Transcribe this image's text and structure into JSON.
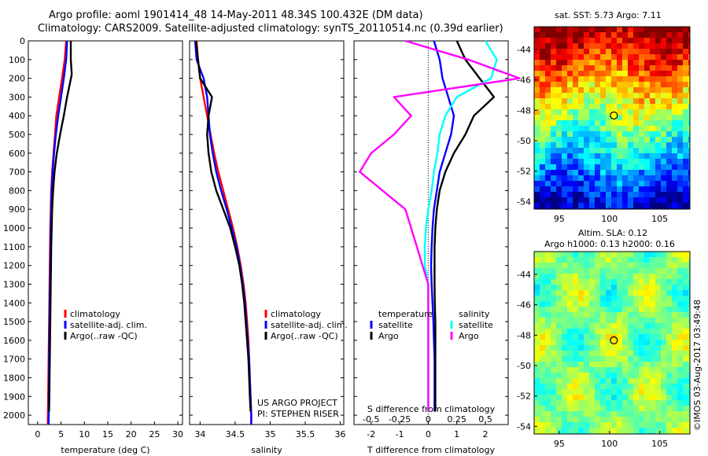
{
  "header": {
    "line1": "Argo profile: aoml 1901414_48 14-May-2011 48.34S 100.432E (DM data)",
    "line2": "Climatology: CARS2009. Satellite-adjusted climatology: synTS_20110514.nc (0.39d earlier)"
  },
  "side": {
    "sst_title": "sat. SST: 5.73 Argo: 7.11",
    "sla_title1": "Altim. SLA: 0.12",
    "sla_title2": "Argo h1000: 0.13 h2000: 0.16",
    "watermark": "©IMOS 03-Aug-2017 03:49:48"
  },
  "chart_data": [
    {
      "type": "line",
      "id": "temperature",
      "xlabel": "temperature (deg C)",
      "xlim": [
        -2,
        31
      ],
      "xticks": [
        0,
        5,
        10,
        15,
        20,
        25,
        30
      ],
      "ylim": [
        0,
        2050
      ],
      "yticks": [
        0,
        100,
        200,
        300,
        400,
        500,
        600,
        700,
        800,
        900,
        1000,
        1100,
        1200,
        1300,
        1400,
        1500,
        1600,
        1700,
        1800,
        1900,
        2000
      ],
      "legend": [
        "climatology",
        "satellite-adj. clim.",
        "Argo(..raw -QC)"
      ],
      "series": [
        {
          "name": "climatology",
          "color": "#ff0000",
          "x": [
            6.1,
            5.8,
            5.2,
            4.6,
            4.0,
            3.7,
            3.4,
            3.1,
            2.9,
            2.8,
            2.7,
            2.65,
            2.6,
            2.55,
            2.5,
            2.45,
            2.4,
            2.35,
            2.3,
            2.25,
            2.2,
            2.15
          ],
          "y": [
            0,
            100,
            200,
            300,
            400,
            500,
            600,
            700,
            800,
            900,
            1000,
            1100,
            1200,
            1300,
            1400,
            1500,
            1600,
            1700,
            1800,
            1900,
            2000,
            2050
          ]
        },
        {
          "name": "satellite-adj. clim.",
          "color": "#0000ff",
          "x": [
            6.3,
            6.1,
            5.6,
            5.0,
            4.4,
            3.9,
            3.5,
            3.2,
            3.0,
            2.9,
            2.8,
            2.75,
            2.7,
            2.65,
            2.6,
            2.55,
            2.5,
            2.45,
            2.42,
            2.4,
            2.38,
            2.36
          ],
          "y": [
            0,
            100,
            200,
            300,
            400,
            500,
            600,
            700,
            800,
            900,
            1000,
            1100,
            1200,
            1300,
            1400,
            1500,
            1600,
            1700,
            1800,
            1900,
            2000,
            2050
          ]
        },
        {
          "name": "Argo(..raw -QC)",
          "color": "#000000",
          "x": [
            7.1,
            7.1,
            7.3,
            6.3,
            5.6,
            4.8,
            4.1,
            3.6,
            3.3,
            3.1,
            3.0,
            2.9,
            2.85,
            2.8,
            2.75,
            2.7,
            2.65,
            2.6,
            2.55,
            2.5,
            2.45
          ],
          "y": [
            0,
            100,
            180,
            300,
            400,
            500,
            600,
            700,
            800,
            900,
            1000,
            1100,
            1200,
            1300,
            1400,
            1500,
            1600,
            1700,
            1800,
            1900,
            1980
          ]
        }
      ]
    },
    {
      "type": "line",
      "id": "salinity",
      "xlabel": "salinity",
      "xlim": [
        33.85,
        36.05
      ],
      "xticks": [
        34,
        34.5,
        35,
        35.5,
        36
      ],
      "ylim": [
        0,
        2050
      ],
      "legend": [
        "climatology",
        "satellite-adj. clim.",
        "Argo(..raw -QC)"
      ],
      "annotations": [
        "US ARGO PROJECT",
        "PI: STEPHEN RISER"
      ],
      "series": [
        {
          "name": "climatology",
          "color": "#ff0000",
          "x": [
            33.95,
            33.97,
            34.0,
            34.05,
            34.1,
            34.15,
            34.2,
            34.26,
            34.33,
            34.4,
            34.47,
            34.53,
            34.58,
            34.62,
            34.65,
            34.67,
            34.69,
            34.7,
            34.71,
            34.72,
            34.73,
            34.73
          ],
          "y": [
            0,
            100,
            200,
            300,
            400,
            500,
            600,
            700,
            800,
            900,
            1000,
            1100,
            1200,
            1300,
            1400,
            1500,
            1600,
            1700,
            1800,
            1900,
            2000,
            2050
          ]
        },
        {
          "name": "satellite-adj. clim.",
          "color": "#0000ff",
          "x": [
            33.93,
            33.95,
            34.05,
            34.1,
            34.12,
            34.14,
            34.18,
            34.23,
            34.3,
            34.38,
            34.45,
            34.52,
            34.57,
            34.61,
            34.64,
            34.66,
            34.68,
            34.7,
            34.71,
            34.72,
            34.73,
            34.73
          ],
          "y": [
            0,
            100,
            200,
            300,
            400,
            500,
            600,
            700,
            800,
            900,
            1000,
            1100,
            1200,
            1300,
            1400,
            1500,
            1600,
            1700,
            1800,
            1900,
            2000,
            2050
          ]
        },
        {
          "name": "Argo(..raw -QC)",
          "color": "#000000",
          "x": [
            33.94,
            33.97,
            34.0,
            34.17,
            34.12,
            34.1,
            34.12,
            34.16,
            34.23,
            34.33,
            34.43,
            34.5,
            34.56,
            34.6,
            34.63,
            34.65,
            34.67,
            34.69,
            34.7,
            34.71,
            34.72
          ],
          "y": [
            0,
            100,
            200,
            300,
            400,
            500,
            600,
            700,
            800,
            900,
            1000,
            1100,
            1200,
            1300,
            1400,
            1500,
            1600,
            1700,
            1800,
            1900,
            1980
          ]
        }
      ]
    },
    {
      "type": "line",
      "id": "difference",
      "xlabel": "T difference from climatology",
      "xlabel_top": "S difference from climatology",
      "xlim": [
        -2.6,
        2.8
      ],
      "xticks": [
        -2,
        -1,
        0,
        1,
        2
      ],
      "top_ticks": [
        "-0.5",
        "-0.25",
        "0",
        "0.25",
        "0.5"
      ],
      "ylim": [
        0,
        2050
      ],
      "legend_temperature_title": "temperature",
      "legend_salinity_title": "salinity",
      "legend_temperature": [
        "satellite",
        "Argo"
      ],
      "legend_salinity": [
        "satellite",
        "Argo"
      ],
      "series": [
        {
          "name": "T satellite",
          "color": "#0000ff",
          "x": [
            0.2,
            0.4,
            0.5,
            0.7,
            0.9,
            0.8,
            0.6,
            0.4,
            0.3,
            0.2,
            0.15,
            0.12,
            0.1,
            0.12,
            0.15,
            0.18,
            0.2,
            0.22,
            0.22,
            0.22,
            0.22
          ],
          "y": [
            0,
            100,
            200,
            300,
            400,
            500,
            600,
            700,
            800,
            900,
            1000,
            1100,
            1200,
            1300,
            1400,
            1500,
            1600,
            1700,
            1800,
            1900,
            1980
          ]
        },
        {
          "name": "T Argo",
          "color": "#000000",
          "x": [
            1.0,
            1.3,
            1.8,
            2.3,
            1.6,
            1.3,
            0.9,
            0.6,
            0.4,
            0.3,
            0.25,
            0.22,
            0.22,
            0.22,
            0.23,
            0.25,
            0.25,
            0.25,
            0.25,
            0.25,
            0.25
          ],
          "y": [
            0,
            100,
            200,
            300,
            400,
            500,
            600,
            700,
            800,
            900,
            1000,
            1100,
            1200,
            1300,
            1400,
            1500,
            1600,
            1700,
            1800,
            1900,
            1980
          ]
        },
        {
          "name": "S satellite",
          "color": "#00ffff",
          "x": [
            0.5,
            0.6,
            0.55,
            0.25,
            0.15,
            0.1,
            0.08,
            0.05,
            0.03,
            0.0,
            -0.02,
            -0.03,
            -0.03,
            0.0,
            0.0,
            0.0,
            0.0,
            0.0,
            0.0,
            0.0,
            0.0
          ],
          "y": [
            0,
            100,
            200,
            300,
            400,
            500,
            600,
            700,
            800,
            900,
            1000,
            1100,
            1200,
            1300,
            1400,
            1500,
            1600,
            1700,
            1800,
            1900,
            1980
          ]
        },
        {
          "name": "S Argo",
          "color": "#ff00ff",
          "x": [
            -0.2,
            0.35,
            0.8,
            -0.3,
            -0.15,
            -0.3,
            -0.5,
            -0.6,
            -0.4,
            -0.2,
            -0.15,
            -0.1,
            -0.05,
            0.0,
            0.0,
            0.0,
            0.0,
            0.0,
            0.0,
            0.0,
            0.0
          ],
          "y": [
            0,
            100,
            200,
            300,
            400,
            500,
            600,
            700,
            800,
            900,
            1000,
            1100,
            1200,
            1300,
            1400,
            1500,
            1600,
            1700,
            1800,
            1900,
            1980
          ]
        }
      ]
    },
    {
      "type": "heatmap",
      "id": "sst_map",
      "title": "sat. SST: 5.73 Argo: 7.11",
      "xlim": [
        92.5,
        108
      ],
      "ylim": [
        -54.5,
        -42.5
      ],
      "xticks": [
        95,
        100,
        105
      ],
      "yticks": [
        -44,
        -46,
        -48,
        -50,
        -52,
        -54
      ],
      "marker": {
        "lon": 100.432,
        "lat": -48.34
      }
    },
    {
      "type": "heatmap",
      "id": "sla_map",
      "title": "Altim. SLA: 0.12",
      "xlim": [
        92.5,
        108
      ],
      "ylim": [
        -54.5,
        -42.5
      ],
      "xticks": [
        95,
        100,
        105
      ],
      "yticks": [
        -44,
        -46,
        -48,
        -50,
        -52,
        -54
      ],
      "marker": {
        "lon": 100.432,
        "lat": -48.34
      }
    }
  ]
}
